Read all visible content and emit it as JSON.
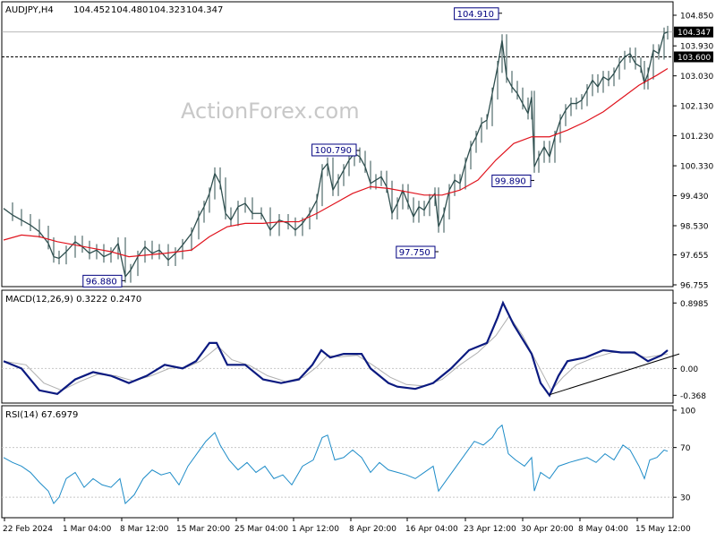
{
  "chart_data": {
    "type": "line",
    "main": {
      "symbol": "AUDJPY,H4",
      "ohlc": [
        "104.452",
        "104.480",
        "104.323",
        "104.347"
      ],
      "watermark": "ActionForex.com",
      "ylim": [
        96.755,
        105.2
      ],
      "yticks": [
        "104.850",
        "103.930",
        "103.030",
        "102.130",
        "101.230",
        "100.330",
        "99.430",
        "98.530",
        "97.655",
        "96.755"
      ],
      "current_price": "104.347",
      "level_line": "103.600",
      "swing_labels": [
        {
          "text": "96.880",
          "x": 136,
          "y": 96.88
        },
        {
          "text": "100.790",
          "x": 398,
          "y": 100.79
        },
        {
          "text": "97.750",
          "x": 486,
          "y": 97.75
        },
        {
          "text": "104.910",
          "x": 557,
          "y": 104.91
        },
        {
          "text": "99.890",
          "x": 593,
          "y": 99.89
        }
      ],
      "price_series": [
        [
          0,
          99.05
        ],
        [
          10,
          98.85
        ],
        [
          20,
          98.7
        ],
        [
          30,
          98.55
        ],
        [
          40,
          98.35
        ],
        [
          50,
          98.0
        ],
        [
          56,
          97.6
        ],
        [
          62,
          97.55
        ],
        [
          70,
          97.75
        ],
        [
          80,
          98.05
        ],
        [
          88,
          97.9
        ],
        [
          96,
          97.7
        ],
        [
          104,
          97.8
        ],
        [
          112,
          97.6
        ],
        [
          120,
          97.7
        ],
        [
          128,
          98.0
        ],
        [
          136,
          97.0
        ],
        [
          142,
          97.2
        ],
        [
          150,
          97.6
        ],
        [
          158,
          97.9
        ],
        [
          166,
          97.7
        ],
        [
          174,
          97.8
        ],
        [
          184,
          97.5
        ],
        [
          192,
          97.7
        ],
        [
          200,
          97.95
        ],
        [
          210,
          98.3
        ],
        [
          218,
          98.8
        ],
        [
          224,
          99.1
        ],
        [
          230,
          99.5
        ],
        [
          236,
          100.1
        ],
        [
          242,
          99.8
        ],
        [
          248,
          98.9
        ],
        [
          254,
          98.7
        ],
        [
          262,
          99.1
        ],
        [
          270,
          99.2
        ],
        [
          278,
          98.9
        ],
        [
          288,
          98.9
        ],
        [
          298,
          98.4
        ],
        [
          308,
          98.7
        ],
        [
          318,
          98.6
        ],
        [
          326,
          98.4
        ],
        [
          334,
          98.6
        ],
        [
          342,
          98.9
        ],
        [
          350,
          99.3
        ],
        [
          356,
          100.2
        ],
        [
          362,
          100.4
        ],
        [
          368,
          99.6
        ],
        [
          374,
          99.9
        ],
        [
          380,
          100.2
        ],
        [
          386,
          100.5
        ],
        [
          392,
          100.7
        ],
        [
          398,
          100.6
        ],
        [
          404,
          100.3
        ],
        [
          410,
          99.8
        ],
        [
          416,
          99.9
        ],
        [
          422,
          100.0
        ],
        [
          428,
          99.7
        ],
        [
          434,
          98.9
        ],
        [
          440,
          99.2
        ],
        [
          446,
          99.6
        ],
        [
          452,
          99.2
        ],
        [
          458,
          98.8
        ],
        [
          464,
          99.1
        ],
        [
          470,
          99.0
        ],
        [
          476,
          99.3
        ],
        [
          482,
          99.5
        ],
        [
          486,
          98.5
        ],
        [
          492,
          98.9
        ],
        [
          498,
          99.6
        ],
        [
          504,
          99.9
        ],
        [
          510,
          99.8
        ],
        [
          516,
          100.4
        ],
        [
          522,
          100.9
        ],
        [
          528,
          101.2
        ],
        [
          534,
          101.6
        ],
        [
          540,
          101.7
        ],
        [
          546,
          102.5
        ],
        [
          552,
          103.3
        ],
        [
          557,
          104.1
        ],
        [
          562,
          103.0
        ],
        [
          568,
          102.7
        ],
        [
          574,
          102.5
        ],
        [
          580,
          102.2
        ],
        [
          586,
          101.9
        ],
        [
          590,
          102.4
        ],
        [
          593,
          100.3
        ],
        [
          598,
          100.6
        ],
        [
          604,
          100.9
        ],
        [
          610,
          100.6
        ],
        [
          616,
          101.2
        ],
        [
          622,
          101.7
        ],
        [
          628,
          102.0
        ],
        [
          634,
          102.2
        ],
        [
          640,
          102.2
        ],
        [
          646,
          102.3
        ],
        [
          652,
          102.6
        ],
        [
          658,
          102.9
        ],
        [
          664,
          102.7
        ],
        [
          670,
          103.0
        ],
        [
          676,
          102.9
        ],
        [
          682,
          103.1
        ],
        [
          688,
          103.4
        ],
        [
          694,
          103.6
        ],
        [
          700,
          103.7
        ],
        [
          706,
          103.4
        ],
        [
          712,
          103.3
        ],
        [
          716,
          102.8
        ],
        [
          720,
          103.1
        ],
        [
          726,
          103.8
        ],
        [
          732,
          103.7
        ],
        [
          738,
          104.3
        ],
        [
          742,
          104.35
        ]
      ],
      "ma_series": [
        [
          0,
          98.1
        ],
        [
          20,
          98.25
        ],
        [
          40,
          98.2
        ],
        [
          60,
          98.05
        ],
        [
          80,
          97.95
        ],
        [
          100,
          97.85
        ],
        [
          120,
          97.75
        ],
        [
          140,
          97.6
        ],
        [
          160,
          97.65
        ],
        [
          180,
          97.7
        ],
        [
          210,
          97.8
        ],
        [
          230,
          98.2
        ],
        [
          250,
          98.5
        ],
        [
          270,
          98.6
        ],
        [
          290,
          98.6
        ],
        [
          310,
          98.65
        ],
        [
          330,
          98.65
        ],
        [
          350,
          98.9
        ],
        [
          370,
          99.2
        ],
        [
          390,
          99.5
        ],
        [
          410,
          99.7
        ],
        [
          430,
          99.65
        ],
        [
          450,
          99.55
        ],
        [
          470,
          99.45
        ],
        [
          490,
          99.45
        ],
        [
          510,
          99.6
        ],
        [
          530,
          99.9
        ],
        [
          550,
          100.5
        ],
        [
          570,
          101.0
        ],
        [
          590,
          101.2
        ],
        [
          610,
          101.2
        ],
        [
          630,
          101.4
        ],
        [
          650,
          101.65
        ],
        [
          670,
          101.95
        ],
        [
          690,
          102.35
        ],
        [
          710,
          102.75
        ],
        [
          730,
          103.05
        ],
        [
          742,
          103.25
        ]
      ]
    },
    "macd": {
      "label": "MACD(12,26,9) 0.3222 0.2470",
      "ylim": [
        -0.45,
        1.0
      ],
      "yticks": [
        "0.8985",
        "0.00",
        "-0.368"
      ],
      "macd_series": [
        [
          0,
          0.1
        ],
        [
          20,
          0.0
        ],
        [
          40,
          -0.3
        ],
        [
          60,
          -0.35
        ],
        [
          80,
          -0.15
        ],
        [
          100,
          -0.05
        ],
        [
          120,
          -0.1
        ],
        [
          140,
          -0.2
        ],
        [
          160,
          -0.1
        ],
        [
          180,
          0.05
        ],
        [
          200,
          0.0
        ],
        [
          215,
          0.1
        ],
        [
          230,
          0.35
        ],
        [
          238,
          0.35
        ],
        [
          250,
          0.05
        ],
        [
          270,
          0.05
        ],
        [
          290,
          -0.15
        ],
        [
          310,
          -0.2
        ],
        [
          330,
          -0.15
        ],
        [
          345,
          0.05
        ],
        [
          355,
          0.25
        ],
        [
          365,
          0.15
        ],
        [
          380,
          0.2
        ],
        [
          400,
          0.2
        ],
        [
          410,
          0.0
        ],
        [
          430,
          -0.2
        ],
        [
          440,
          -0.25
        ],
        [
          460,
          -0.28
        ],
        [
          480,
          -0.2
        ],
        [
          500,
          0.0
        ],
        [
          520,
          0.25
        ],
        [
          540,
          0.35
        ],
        [
          552,
          0.7
        ],
        [
          558,
          0.9
        ],
        [
          570,
          0.6
        ],
        [
          590,
          0.2
        ],
        [
          600,
          -0.2
        ],
        [
          610,
          -0.37
        ],
        [
          620,
          -0.1
        ],
        [
          630,
          0.1
        ],
        [
          650,
          0.15
        ],
        [
          670,
          0.25
        ],
        [
          690,
          0.22
        ],
        [
          705,
          0.22
        ],
        [
          720,
          0.1
        ],
        [
          735,
          0.18
        ],
        [
          742,
          0.25
        ]
      ],
      "signal_series": [
        [
          0,
          0.1
        ],
        [
          25,
          0.05
        ],
        [
          45,
          -0.2
        ],
        [
          65,
          -0.3
        ],
        [
          85,
          -0.18
        ],
        [
          105,
          -0.08
        ],
        [
          125,
          -0.1
        ],
        [
          145,
          -0.17
        ],
        [
          165,
          -0.1
        ],
        [
          185,
          0.0
        ],
        [
          205,
          0.02
        ],
        [
          220,
          0.1
        ],
        [
          240,
          0.3
        ],
        [
          255,
          0.12
        ],
        [
          275,
          0.04
        ],
        [
          295,
          -0.1
        ],
        [
          315,
          -0.18
        ],
        [
          335,
          -0.12
        ],
        [
          350,
          0.02
        ],
        [
          362,
          0.18
        ],
        [
          375,
          0.16
        ],
        [
          395,
          0.18
        ],
        [
          412,
          0.05
        ],
        [
          432,
          -0.12
        ],
        [
          450,
          -0.22
        ],
        [
          470,
          -0.24
        ],
        [
          490,
          -0.15
        ],
        [
          510,
          0.05
        ],
        [
          530,
          0.22
        ],
        [
          550,
          0.45
        ],
        [
          565,
          0.72
        ],
        [
          580,
          0.45
        ],
        [
          597,
          0.05
        ],
        [
          612,
          -0.3
        ],
        [
          625,
          -0.12
        ],
        [
          640,
          0.05
        ],
        [
          660,
          0.15
        ],
        [
          680,
          0.22
        ],
        [
          700,
          0.22
        ],
        [
          718,
          0.15
        ],
        [
          742,
          0.2
        ]
      ],
      "trendline": [
        [
          610,
          -0.36
        ],
        [
          755,
          0.2
        ]
      ]
    },
    "rsi": {
      "label": "RSI(14) 67.6979",
      "ylim": [
        15,
        100
      ],
      "yticks": [
        "100",
        "70",
        "30"
      ],
      "guides": [
        70,
        30
      ],
      "series": [
        [
          0,
          62
        ],
        [
          10,
          58
        ],
        [
          20,
          55
        ],
        [
          30,
          50
        ],
        [
          40,
          42
        ],
        [
          50,
          35
        ],
        [
          56,
          25
        ],
        [
          62,
          30
        ],
        [
          70,
          45
        ],
        [
          80,
          50
        ],
        [
          90,
          38
        ],
        [
          100,
          45
        ],
        [
          110,
          40
        ],
        [
          120,
          38
        ],
        [
          130,
          45
        ],
        [
          136,
          25
        ],
        [
          146,
          32
        ],
        [
          156,
          45
        ],
        [
          166,
          52
        ],
        [
          176,
          48
        ],
        [
          186,
          50
        ],
        [
          196,
          40
        ],
        [
          206,
          55
        ],
        [
          216,
          65
        ],
        [
          226,
          75
        ],
        [
          236,
          82
        ],
        [
          242,
          72
        ],
        [
          252,
          60
        ],
        [
          262,
          52
        ],
        [
          272,
          58
        ],
        [
          282,
          50
        ],
        [
          292,
          55
        ],
        [
          302,
          45
        ],
        [
          312,
          48
        ],
        [
          322,
          40
        ],
        [
          334,
          55
        ],
        [
          346,
          60
        ],
        [
          356,
          78
        ],
        [
          362,
          80
        ],
        [
          370,
          60
        ],
        [
          380,
          62
        ],
        [
          390,
          68
        ],
        [
          400,
          62
        ],
        [
          410,
          50
        ],
        [
          420,
          58
        ],
        [
          430,
          52
        ],
        [
          440,
          50
        ],
        [
          450,
          48
        ],
        [
          460,
          45
        ],
        [
          470,
          50
        ],
        [
          480,
          55
        ],
        [
          486,
          35
        ],
        [
          496,
          45
        ],
        [
          506,
          55
        ],
        [
          516,
          65
        ],
        [
          526,
          75
        ],
        [
          536,
          72
        ],
        [
          546,
          78
        ],
        [
          552,
          85
        ],
        [
          557,
          88
        ],
        [
          564,
          65
        ],
        [
          572,
          60
        ],
        [
          582,
          55
        ],
        [
          590,
          62
        ],
        [
          593,
          35
        ],
        [
          600,
          50
        ],
        [
          610,
          45
        ],
        [
          620,
          55
        ],
        [
          632,
          58
        ],
        [
          642,
          60
        ],
        [
          652,
          62
        ],
        [
          662,
          58
        ],
        [
          672,
          65
        ],
        [
          682,
          60
        ],
        [
          692,
          72
        ],
        [
          700,
          68
        ],
        [
          710,
          55
        ],
        [
          716,
          45
        ],
        [
          722,
          60
        ],
        [
          730,
          62
        ],
        [
          738,
          68
        ],
        [
          742,
          67
        ]
      ]
    },
    "x_axis": {
      "labels": [
        "22 Feb 2024",
        "1 Mar 04:00",
        "8 Mar 12:00",
        "15 Mar 20:00",
        "25 Mar 04:00",
        "1 Apr 12:00",
        "8 Apr 20:00",
        "16 Apr 04:00",
        "23 Apr 12:00",
        "30 Apr 20:00",
        "8 May 04:00",
        "15 May 12:00"
      ],
      "positions": [
        3,
        70,
        134,
        197,
        262,
        326,
        390,
        453,
        518,
        582,
        646,
        710
      ]
    },
    "colors": {
      "price": "#2f4f4f",
      "ma": "#e0141e",
      "macd": "#0b1a80",
      "signal": "#b0b0b0",
      "rsi": "#1e8cc8",
      "grid": "#c8c8c8",
      "label_box": "#000080",
      "watermark": "#c8c8c8"
    }
  }
}
